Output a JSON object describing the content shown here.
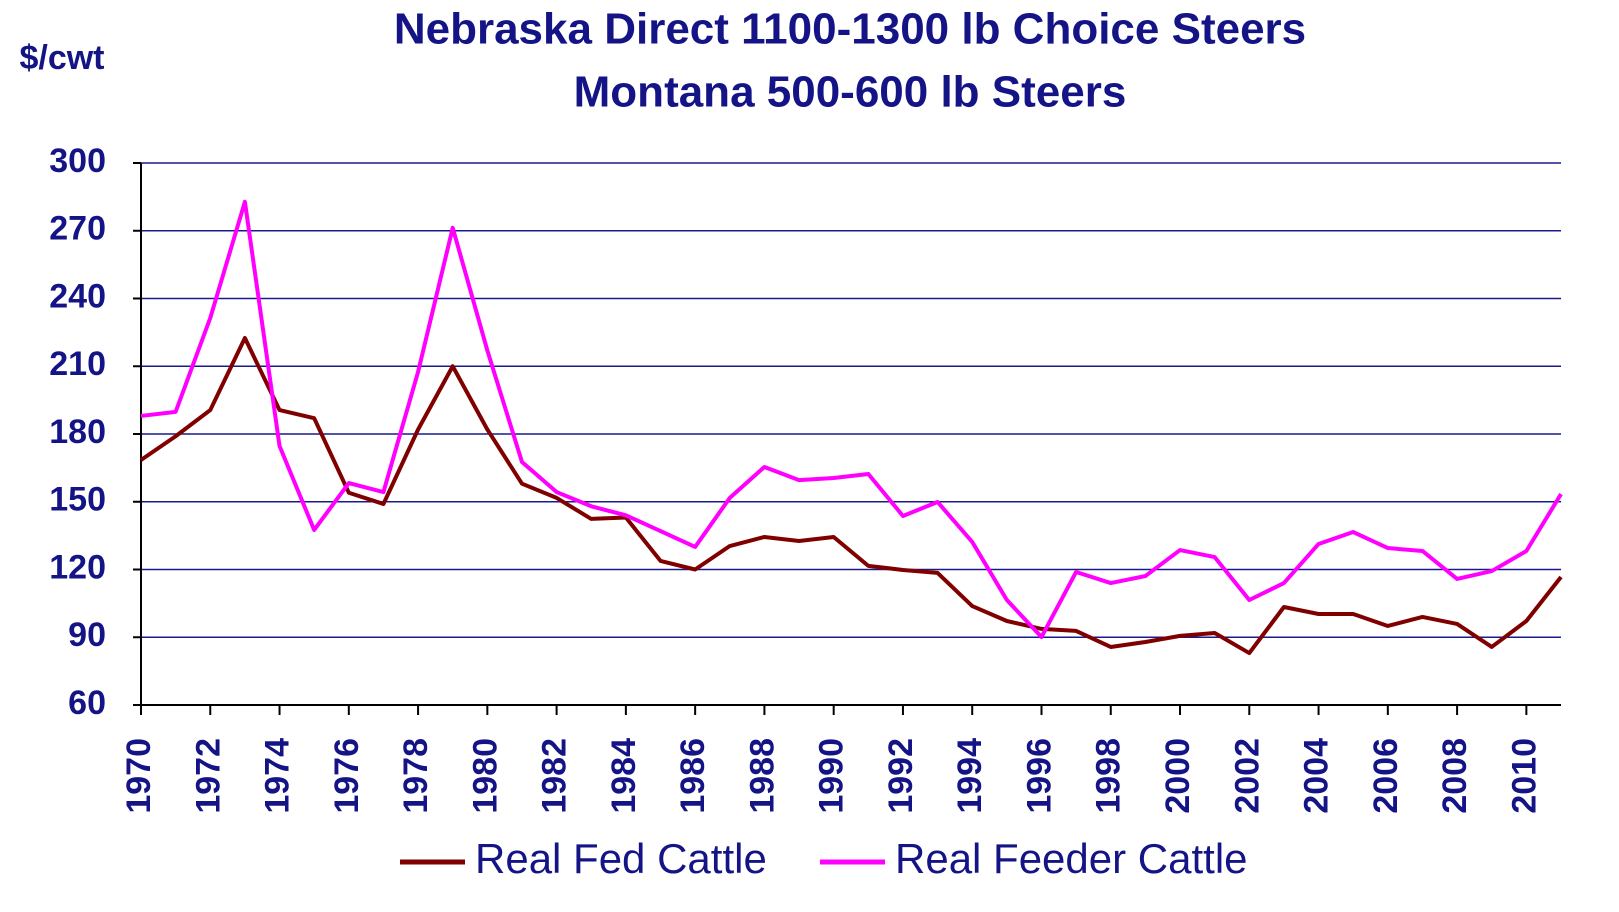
{
  "chart_data": {
    "type": "line",
    "title": "Nebraska Direct 1100-1300 lb Choice Steers",
    "subtitle": "Montana 500-600 lb Steers",
    "y_label": "$/cwt",
    "x": [
      1970,
      1971,
      1972,
      1973,
      1974,
      1975,
      1976,
      1977,
      1978,
      1979,
      1980,
      1981,
      1982,
      1983,
      1984,
      1985,
      1986,
      1987,
      1988,
      1989,
      1990,
      1991,
      1992,
      1993,
      1994,
      1995,
      1996,
      1997,
      1998,
      1999,
      2000,
      2001,
      2002,
      2003,
      2004,
      2005,
      2006,
      2007,
      2008,
      2009,
      2010,
      2011
    ],
    "series": [
      {
        "name": "Real Fed Cattle",
        "color": "#800000",
        "values": [
          168.5,
          179,
          190.6,
          222.5,
          190.6,
          187,
          154,
          149,
          182,
          210,
          182,
          158,
          151.7,
          142.4,
          143,
          123.8,
          120,
          130.4,
          134.4,
          132.6,
          134.4,
          121.6,
          119.8,
          118.5,
          103.8,
          97.2,
          93.7,
          92.8,
          85.7,
          87.9,
          90.6,
          91.9,
          83,
          103.4,
          100.3,
          100.3,
          95,
          99,
          95.9,
          85.7,
          97.2,
          116.7
        ]
      },
      {
        "name": "Real Feeder Cattle",
        "color": "#ff00ff",
        "values": [
          188,
          189.8,
          231.4,
          282.8,
          174.7,
          137.5,
          158.3,
          154.3,
          207.5,
          271.3,
          217,
          167.6,
          154.3,
          148,
          144,
          137,
          130,
          151.7,
          165.4,
          159.6,
          160.5,
          162.3,
          143.7,
          149.9,
          132.2,
          106.5,
          90.1,
          118.9,
          114,
          117.1,
          128.6,
          125.5,
          106.5,
          114,
          131.3,
          136.6,
          129.5,
          128.2,
          115.8,
          119.3,
          128.2,
          153.4
        ]
      }
    ],
    "xlim": [
      1970,
      2011
    ],
    "xticks": [
      1970,
      1972,
      1974,
      1976,
      1978,
      1980,
      1982,
      1984,
      1986,
      1988,
      1990,
      1992,
      1994,
      1996,
      1998,
      2000,
      2002,
      2004,
      2006,
      2008,
      2010
    ],
    "ylim": [
      60,
      300
    ],
    "yticks": [
      60,
      90,
      120,
      150,
      180,
      210,
      240,
      270,
      300
    ],
    "grid": true,
    "legend": "bottom"
  }
}
